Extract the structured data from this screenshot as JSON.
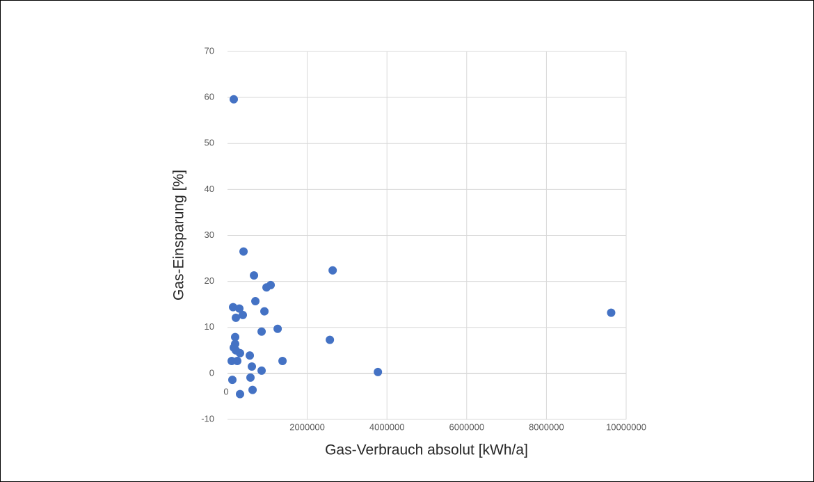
{
  "chart_data": {
    "type": "scatter",
    "x_label": "Gas-Verbrauch absolut [kWh/a]",
    "y_label": "Gas-Einsparung [%]",
    "series": [
      {
        "color": "#4472c4",
        "x": [
          157000,
          402000,
          664000,
          1083000,
          978000,
          699000,
          140000,
          297000,
          926000,
          384000,
          210000,
          1258000,
          856000,
          2638000,
          2568000,
          9624000,
          3773000,
          192000,
          192000,
          157000,
          210000,
          314000,
          559000,
          1380000,
          105000,
          245000,
          611000,
          856000,
          576000,
          122000,
          629000,
          314000
        ],
        "values": [
          59.6,
          26.5,
          21.3,
          19.2,
          18.7,
          15.7,
          14.4,
          14.1,
          13.5,
          12.7,
          12.1,
          9.7,
          9.1,
          22.4,
          7.3,
          13.2,
          0.3,
          7.9,
          6.4,
          5.6,
          5.0,
          4.4,
          3.9,
          2.7,
          2.7,
          2.7,
          1.5,
          0.6,
          -0.9,
          -1.4,
          -3.6,
          -4.5
        ]
      }
    ],
    "xlim": [
      0,
      10000000
    ],
    "xticks": [
      0,
      2000000,
      4000000,
      6000000,
      8000000,
      10000000
    ],
    "ylim": [
      -10,
      70
    ],
    "yticks": [
      -10,
      0,
      10,
      20,
      30,
      40,
      50,
      60,
      70
    ],
    "grid": true
  }
}
